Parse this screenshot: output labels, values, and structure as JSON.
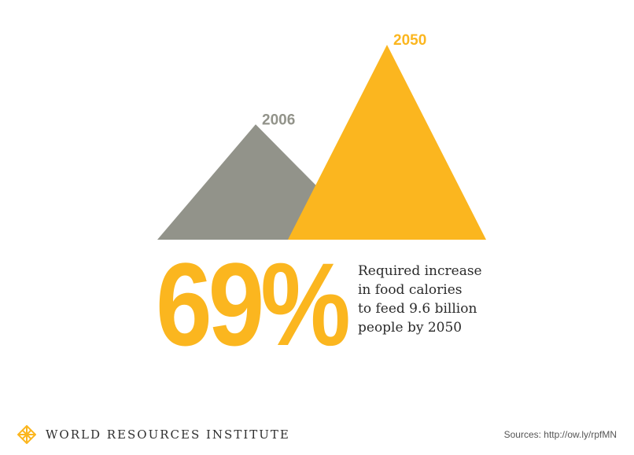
{
  "chart_data": {
    "type": "area",
    "title": "",
    "categories": [
      "2006",
      "2050"
    ],
    "values": [
      100,
      169
    ],
    "colors": {
      "2006": "#92938a",
      "2050": "#fbb61f"
    },
    "headline_value": "69%",
    "caption_lines": [
      "Required increase",
      "in food calories",
      "to feed 9.6 billion",
      "people by 2050"
    ]
  },
  "footer": {
    "logo_icon": "wri-lattice-icon",
    "org_name": "WORLD RESOURCES INSTITUTE",
    "sources": "Sources: http://ow.ly/rpfMN"
  },
  "colors": {
    "accent": "#fbb61f",
    "gray": "#92938a",
    "text": "#2b2b2b"
  }
}
